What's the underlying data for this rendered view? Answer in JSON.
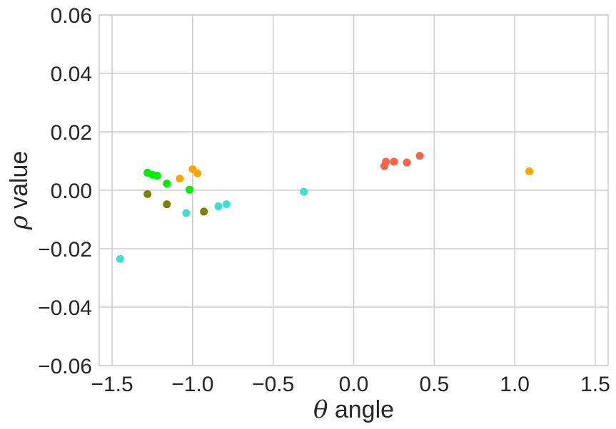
{
  "chart_data": {
    "type": "scatter",
    "xlabel": {
      "symbol": "θ",
      "text": " angle"
    },
    "ylabel": {
      "symbol": "ρ",
      "text": " value"
    },
    "xlim": [
      -1.58,
      1.58
    ],
    "ylim": [
      -0.06,
      0.06
    ],
    "xticks": [
      -1.5,
      -1.0,
      -0.5,
      0.0,
      0.5,
      1.0,
      1.5
    ],
    "xtick_labels": [
      "−1.5",
      "−1.0",
      "−0.5",
      "0.0",
      "0.5",
      "1.0",
      "1.5"
    ],
    "yticks": [
      -0.06,
      -0.04,
      -0.02,
      0.0,
      0.02,
      0.04,
      0.06
    ],
    "ytick_labels": [
      "−0.06",
      "−0.04",
      "−0.02",
      "0.00",
      "0.02",
      "0.04",
      "0.06"
    ],
    "grid": true,
    "colors": {
      "green": "#00ee00",
      "orange": "#ffa500",
      "olive": "#808000",
      "turquoise": "#40e0d0",
      "tomato": "#ff6347"
    },
    "series": [
      {
        "color": "green",
        "points": [
          [
            -1.28,
            0.006
          ],
          [
            -1.25,
            0.0053
          ],
          [
            -1.22,
            0.005
          ],
          [
            -1.16,
            0.0023
          ],
          [
            -1.02,
            0.0002
          ]
        ]
      },
      {
        "color": "orange",
        "points": [
          [
            -1.08,
            0.004
          ],
          [
            -1.0,
            0.0072
          ],
          [
            -0.97,
            0.0058
          ],
          [
            1.09,
            0.0065
          ]
        ]
      },
      {
        "color": "olive",
        "points": [
          [
            -1.28,
            -0.0013
          ],
          [
            -1.16,
            -0.0048
          ],
          [
            -0.93,
            -0.0073
          ]
        ]
      },
      {
        "color": "turquoise",
        "points": [
          [
            -1.45,
            -0.0235
          ],
          [
            -1.04,
            -0.0078
          ],
          [
            -0.84,
            -0.0055
          ],
          [
            -0.79,
            -0.0048
          ],
          [
            -0.31,
            -0.0005
          ]
        ]
      },
      {
        "color": "tomato",
        "points": [
          [
            0.19,
            0.0083
          ],
          [
            0.2,
            0.0098
          ],
          [
            0.25,
            0.0098
          ],
          [
            0.33,
            0.0095
          ],
          [
            0.41,
            0.0118
          ]
        ]
      }
    ]
  }
}
